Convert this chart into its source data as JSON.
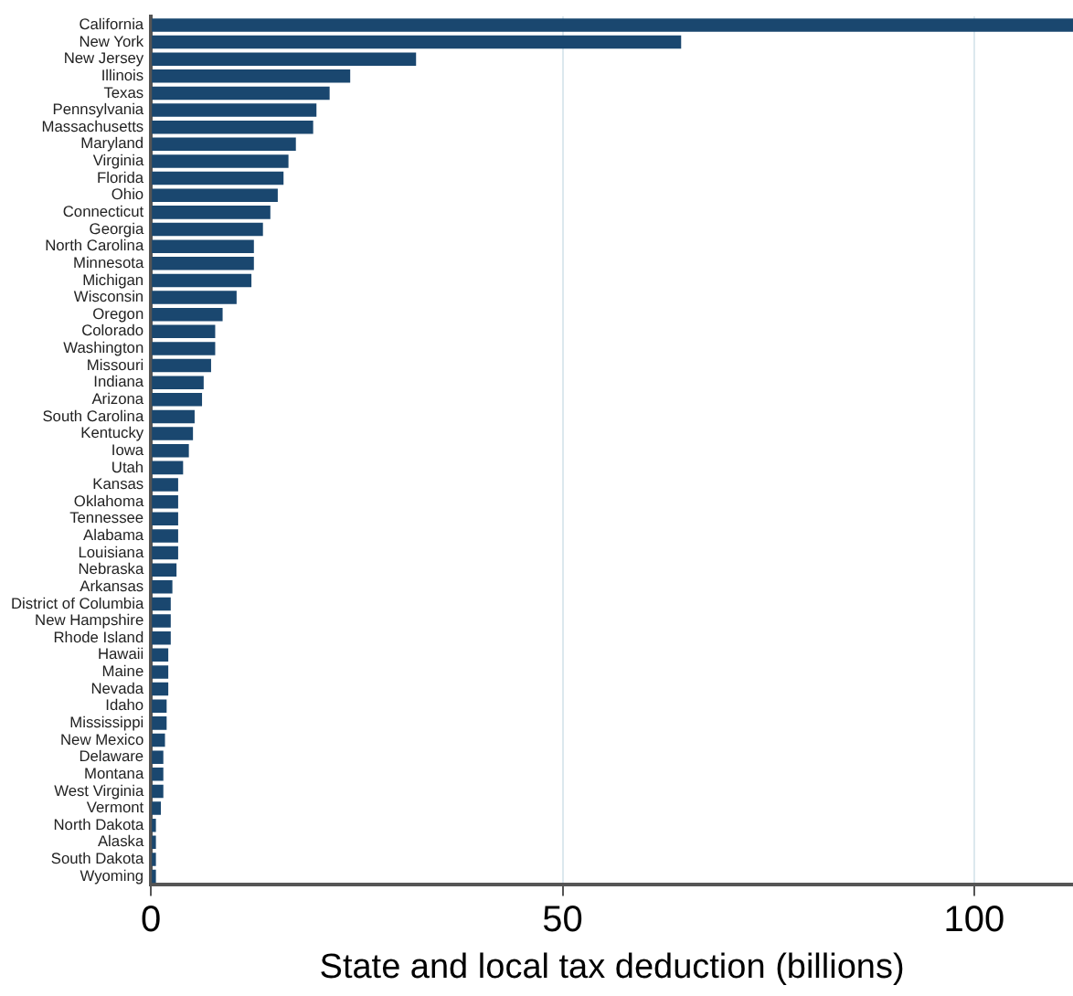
{
  "chart_data": {
    "type": "bar",
    "orientation": "horizontal",
    "xlabel": "State and local tax deduction (billions)",
    "categories": [
      "California",
      "New York",
      "New Jersey",
      "Illinois",
      "Texas",
      "Pennsylvania",
      "Massachusetts",
      "Maryland",
      "Virginia",
      "Florida",
      "Ohio",
      "Connecticut",
      "Georgia",
      "North Carolina",
      "Minnesota",
      "Michigan",
      "Wisconsin",
      "Oregon",
      "Colorado",
      "Washington",
      "Missouri",
      "Indiana",
      "Arizona",
      "South Carolina",
      "Kentucky",
      "Iowa",
      "Utah",
      "Kansas",
      "Oklahoma",
      "Tennessee",
      "Alabama",
      "Louisiana",
      "Nebraska",
      "Arkansas",
      "District of Columbia",
      "New Hampshire",
      "Rhode Island",
      "Hawaii",
      "Maine",
      "Nevada",
      "Idaho",
      "Mississippi",
      "New Mexico",
      "Delaware",
      "Montana",
      "West Virginia",
      "Vermont",
      "North Dakota",
      "Alaska",
      "South Dakota",
      "Wyoming"
    ],
    "values": [
      112,
      64.4,
      32.2,
      24.2,
      21.7,
      20.1,
      19.7,
      17.6,
      16.7,
      16.1,
      15.4,
      14.5,
      13.6,
      12.5,
      12.5,
      12.2,
      10.4,
      8.7,
      7.8,
      7.8,
      7.3,
      6.4,
      6.2,
      5.3,
      5.1,
      4.6,
      3.9,
      3.3,
      3.3,
      3.3,
      3.3,
      3.3,
      3.1,
      2.6,
      2.4,
      2.4,
      2.4,
      2.1,
      2.1,
      2.1,
      1.9,
      1.9,
      1.7,
      1.5,
      1.5,
      1.5,
      1.2,
      0.6,
      0.6,
      0.6,
      0.6
    ],
    "color": "#1a476f",
    "xlim": [
      0,
      112
    ],
    "xticks": [
      0,
      50,
      100
    ],
    "grid": "x",
    "legend": false
  }
}
